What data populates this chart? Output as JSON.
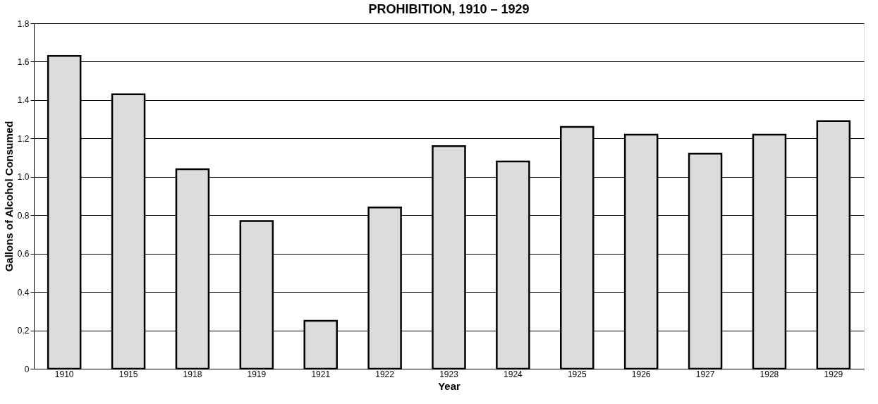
{
  "chart_data": {
    "type": "bar",
    "title": "PROHIBITION, 1910 – 1929",
    "xlabel": "Year",
    "ylabel": "Gallons of Alcohol Consumed",
    "categories": [
      "1910",
      "1915",
      "1918",
      "1919",
      "1921",
      "1922",
      "1923",
      "1924",
      "1925",
      "1926",
      "1927",
      "1928",
      "1929"
    ],
    "values": [
      1.63,
      1.43,
      1.04,
      0.77,
      0.25,
      0.84,
      1.16,
      1.08,
      1.26,
      1.22,
      1.12,
      1.22,
      1.29
    ],
    "color": "#dcdcdc",
    "ylim": [
      0,
      1.8
    ],
    "yticks": [
      {
        "value": 0,
        "label": "0"
      },
      {
        "value": 0.2,
        "label": "0.2"
      },
      {
        "value": 0.4,
        "label": "0.4"
      },
      {
        "value": 0.6,
        "label": "0.6"
      },
      {
        "value": 0.8,
        "label": "0.8"
      },
      {
        "value": 1.0,
        "label": "1.0"
      },
      {
        "value": 1.2,
        "label": "1.2"
      },
      {
        "value": 1.4,
        "label": "1.4"
      },
      {
        "value": 1.6,
        "label": "1.6"
      },
      {
        "value": 1.8,
        "label": "1.8"
      }
    ],
    "grid": "y"
  }
}
